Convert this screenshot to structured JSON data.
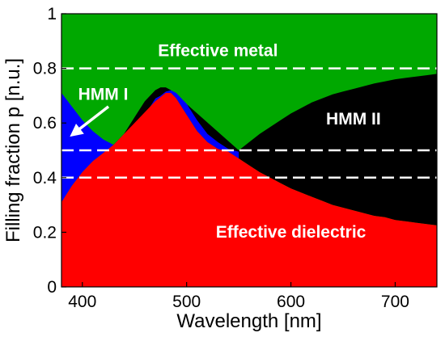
{
  "chart_data": {
    "type": "area",
    "xlabel": "Wavelength  [nm]",
    "ylabel": "Filling fraction p  [n.u.]",
    "xlim": [
      380,
      740
    ],
    "ylim": [
      0,
      1
    ],
    "xticks": [
      400,
      500,
      600,
      700
    ],
    "yticks": [
      0,
      0.2,
      0.4,
      0.6,
      0.8,
      1
    ],
    "ytick_labels": [
      "0",
      "0.2",
      "0.4",
      "0.6",
      "0.8",
      "1"
    ],
    "dashed_lines_y": [
      0.8,
      0.5,
      0.4
    ],
    "colors": {
      "effective_metal": "#00a800",
      "effective_dielectric": "#ff0000",
      "hmm_i": "#0000ff",
      "hmm_ii": "#000000",
      "dashed_line": "#ffffff"
    },
    "lower_boundary": {
      "name": "dielectric upper boundary",
      "x": [
        380,
        390,
        400,
        410,
        420,
        430,
        440,
        450,
        460,
        470,
        480,
        485,
        490,
        500,
        510,
        520,
        530,
        540,
        550,
        560,
        570,
        580,
        590,
        600,
        610,
        620,
        630,
        640,
        650,
        660,
        670,
        680,
        690,
        700,
        710,
        720,
        730,
        740
      ],
      "values": [
        0.31,
        0.37,
        0.42,
        0.46,
        0.49,
        0.52,
        0.56,
        0.6,
        0.64,
        0.68,
        0.71,
        0.71,
        0.69,
        0.63,
        0.57,
        0.53,
        0.505,
        0.495,
        0.47,
        0.445,
        0.42,
        0.4,
        0.38,
        0.36,
        0.345,
        0.33,
        0.315,
        0.3,
        0.29,
        0.28,
        0.27,
        0.26,
        0.255,
        0.245,
        0.24,
        0.235,
        0.23,
        0.225
      ]
    },
    "hmm_i_top": {
      "name": "HMM I upper boundary",
      "x": [
        380,
        390,
        400,
        410,
        420,
        430,
        440,
        450,
        460,
        470,
        475,
        480,
        485,
        490,
        500,
        510,
        520,
        530,
        540,
        550
      ],
      "values": [
        0.71,
        0.66,
        0.61,
        0.57,
        0.54,
        0.52,
        0.52,
        0.57,
        0.63,
        0.69,
        0.7,
        0.715,
        0.72,
        0.71,
        0.67,
        0.61,
        0.56,
        0.53,
        0.505,
        0.495
      ]
    },
    "hmm_ii_top": {
      "name": "HMM II upper boundary",
      "x": [
        430,
        440,
        450,
        460,
        470,
        475,
        480,
        485,
        550,
        560,
        570,
        580,
        590,
        600,
        610,
        620,
        630,
        640,
        650,
        660,
        670,
        680,
        690,
        700,
        710,
        720,
        730,
        740
      ],
      "values": [
        0.52,
        0.56,
        0.62,
        0.68,
        0.72,
        0.73,
        0.73,
        0.72,
        0.5,
        0.53,
        0.56,
        0.585,
        0.61,
        0.635,
        0.655,
        0.675,
        0.69,
        0.705,
        0.715,
        0.725,
        0.735,
        0.745,
        0.752,
        0.76,
        0.765,
        0.77,
        0.775,
        0.78
      ]
    },
    "annotations": [
      {
        "text": "Effective metal",
        "x": 530,
        "y": 0.845
      },
      {
        "text": "HMM I",
        "x": 420,
        "y": 0.685
      },
      {
        "text": "HMM II",
        "x": 660,
        "y": 0.595
      },
      {
        "text": "Effective dielectric",
        "x": 600,
        "y": 0.18
      }
    ],
    "arrow": {
      "from": [
        425,
        0.66
      ],
      "to": [
        388,
        0.55
      ]
    }
  }
}
